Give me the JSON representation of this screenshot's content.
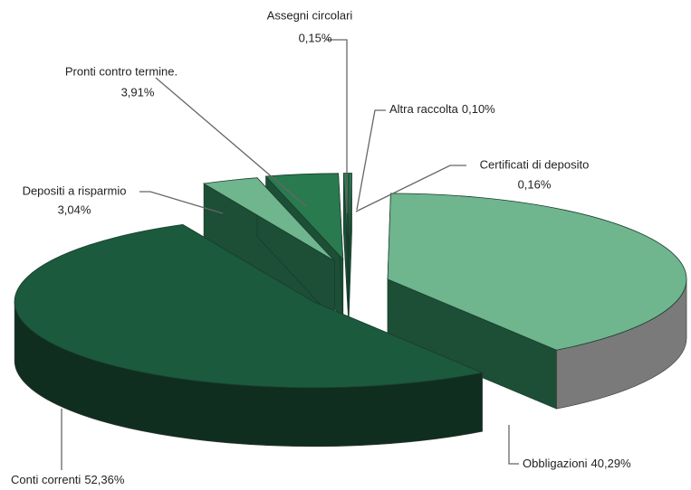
{
  "chart_data": {
    "type": "pie3d",
    "categories": [
      "Certificati di deposito",
      "Obbligazioni",
      "Conti correnti",
      "Depositi a risparmio",
      "Pronti contro termine.",
      "Assegni circolari",
      "Altra raccolta"
    ],
    "values": [
      0.16,
      40.29,
      52.36,
      3.04,
      3.91,
      0.15,
      0.1
    ],
    "value_labels": [
      "0,16%",
      "40,29%",
      "52,36%",
      "3,04%",
      "3,91%",
      "0,15%",
      "0,10%"
    ],
    "colors": [
      "#2e7d55",
      "#6fb58e",
      "#1b5a3c",
      "#6fb58e",
      "#2a7a4f",
      "#2e7d55",
      "#2e7d55"
    ]
  }
}
